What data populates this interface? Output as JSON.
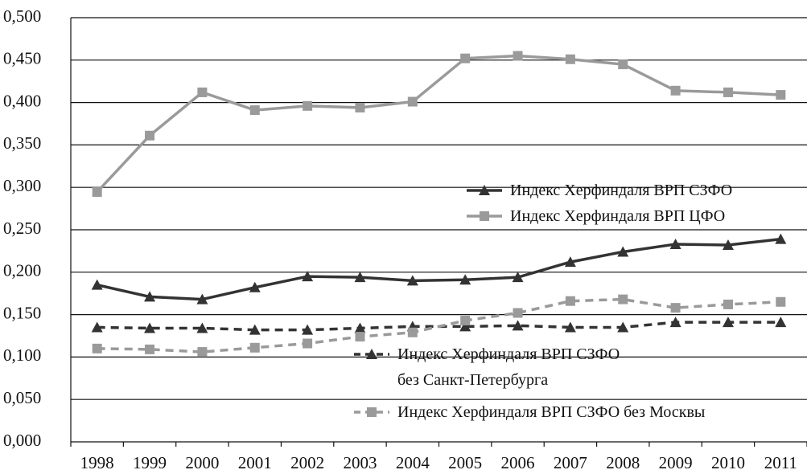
{
  "chart_data": {
    "type": "line",
    "categories": [
      "1998",
      "1999",
      "2000",
      "2001",
      "2002",
      "2003",
      "2004",
      "2005",
      "2006",
      "2007",
      "2008",
      "2009",
      "2010",
      "2011"
    ],
    "ylim": [
      0,
      0.5
    ],
    "yticks": [
      {
        "value": 0,
        "label": "0,000"
      },
      {
        "value": 0.05,
        "label": "0,050"
      },
      {
        "value": 0.1,
        "label": "0,100"
      },
      {
        "value": 0.15,
        "label": "0,150"
      },
      {
        "value": 0.2,
        "label": "0,200"
      },
      {
        "value": 0.25,
        "label": "0,250"
      },
      {
        "value": 0.3,
        "label": "0,300"
      },
      {
        "value": 0.35,
        "label": "0,350"
      },
      {
        "value": 0.4,
        "label": "0,400"
      },
      {
        "value": 0.45,
        "label": "0,450"
      },
      {
        "value": 0.5,
        "label": "0,500"
      }
    ],
    "grid": true,
    "series": [
      {
        "name": "Индекс Херфиндаля ВРП СЗФО",
        "color": "#333333",
        "marker": "triangle",
        "dashed": false,
        "values": [
          0.185,
          0.171,
          0.168,
          0.182,
          0.195,
          0.194,
          0.19,
          0.191,
          0.194,
          0.212,
          0.224,
          0.233,
          0.232,
          0.239
        ]
      },
      {
        "name": "Индекс Херфиндаля ВРП ЦФО",
        "color": "#9a9a9a",
        "marker": "square",
        "dashed": false,
        "values": [
          0.2945,
          0.361,
          0.412,
          0.391,
          0.396,
          0.394,
          0.401,
          0.452,
          0.455,
          0.451,
          0.445,
          0.414,
          0.412,
          0.409
        ]
      },
      {
        "name": "Индекс Херфиндаля ВРП СЗФО\nбез Санкт-Петербурга",
        "color": "#333333",
        "marker": "triangle",
        "dashed": true,
        "values": [
          0.135,
          0.134,
          0.134,
          0.132,
          0.132,
          0.134,
          0.136,
          0.136,
          0.137,
          0.135,
          0.135,
          0.141,
          0.141,
          0.141
        ]
      },
      {
        "name": "Индекс Херфиндаля ВРП СЗФО без Москвы",
        "color": "#9a9a9a",
        "marker": "square",
        "dashed": true,
        "values": [
          0.11,
          0.109,
          0.106,
          0.111,
          0.116,
          0.124,
          0.129,
          0.143,
          0.152,
          0.166,
          0.168,
          0.158,
          0.162,
          0.165
        ]
      }
    ]
  }
}
